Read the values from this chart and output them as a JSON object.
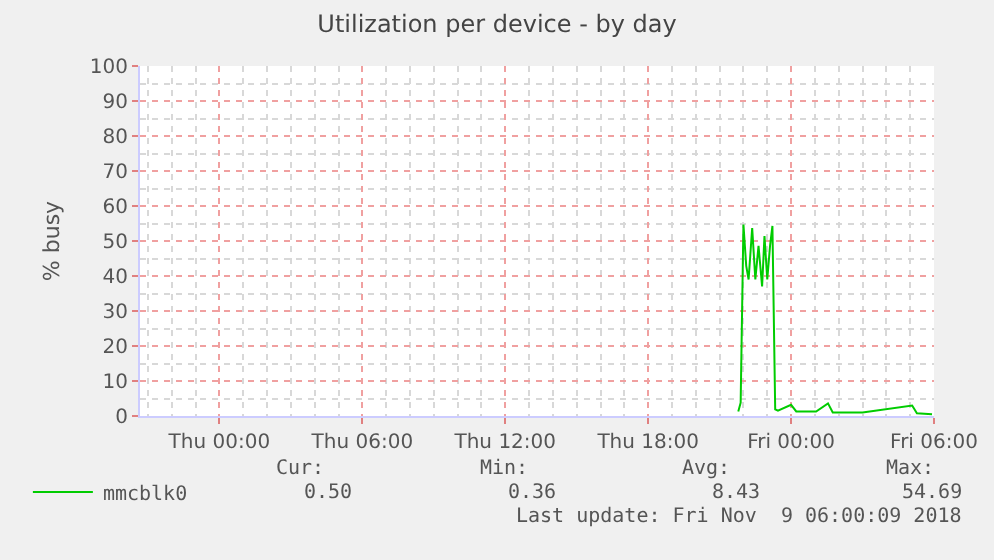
{
  "chart_data": {
    "type": "line",
    "title": "Utilization per device - by day",
    "ylabel": "% busy",
    "x": [
      "2018-11-08T21:47",
      "2018-11-08T21:53",
      "2018-11-08T22:00",
      "2018-11-08T22:07",
      "2018-11-08T22:13",
      "2018-11-08T22:22",
      "2018-11-08T22:30",
      "2018-11-08T22:38",
      "2018-11-08T22:47",
      "2018-11-08T22:53",
      "2018-11-08T23:00",
      "2018-11-08T23:07",
      "2018-11-08T23:13",
      "2018-11-08T23:20",
      "2018-11-08T23:27",
      "2018-11-09T00:00",
      "2018-11-09T00:13",
      "2018-11-09T01:03",
      "2018-11-09T01:33",
      "2018-11-09T01:45",
      "2018-11-09T03:00",
      "2018-11-09T05:05",
      "2018-11-09T05:17",
      "2018-11-09T05:55"
    ],
    "series": [
      {
        "name": "mmcblk0",
        "color": "#00cc00",
        "values": [
          1.3,
          3.8,
          54.7,
          42.9,
          39,
          53.7,
          39,
          48.6,
          37,
          51.4,
          39,
          48.6,
          54.3,
          1.9,
          1.5,
          3.2,
          1.3,
          1.3,
          3.6,
          1,
          1,
          3,
          0.8,
          0.5
        ]
      }
    ],
    "xlim": [
      "2018-11-07T20:40",
      "2018-11-09T06:00"
    ],
    "xticks": [
      {
        "value": "2018-11-08T00:00",
        "label": "Thu 00:00"
      },
      {
        "value": "2018-11-08T06:00",
        "label": "Thu 06:00"
      },
      {
        "value": "2018-11-08T12:00",
        "label": "Thu 12:00"
      },
      {
        "value": "2018-11-08T18:00",
        "label": "Thu 18:00"
      },
      {
        "value": "2018-11-09T00:00",
        "label": "Fri 00:00"
      },
      {
        "value": "2018-11-09T06:00",
        "label": "Fri 06:00"
      }
    ],
    "ylim": [
      0,
      100
    ],
    "yticks": [
      0,
      10,
      20,
      30,
      40,
      50,
      60,
      70,
      80,
      90,
      100
    ],
    "grid": true,
    "legend": "bottom left",
    "marker": "none",
    "line_style": "solid",
    "annotations": [
      "Cur:",
      "Min:",
      "Avg:",
      "Max:",
      "0.50",
      "0.36",
      "8.43",
      "54.69",
      "Last update: Fri Nov  9 06:00:09 2018"
    ]
  }
}
